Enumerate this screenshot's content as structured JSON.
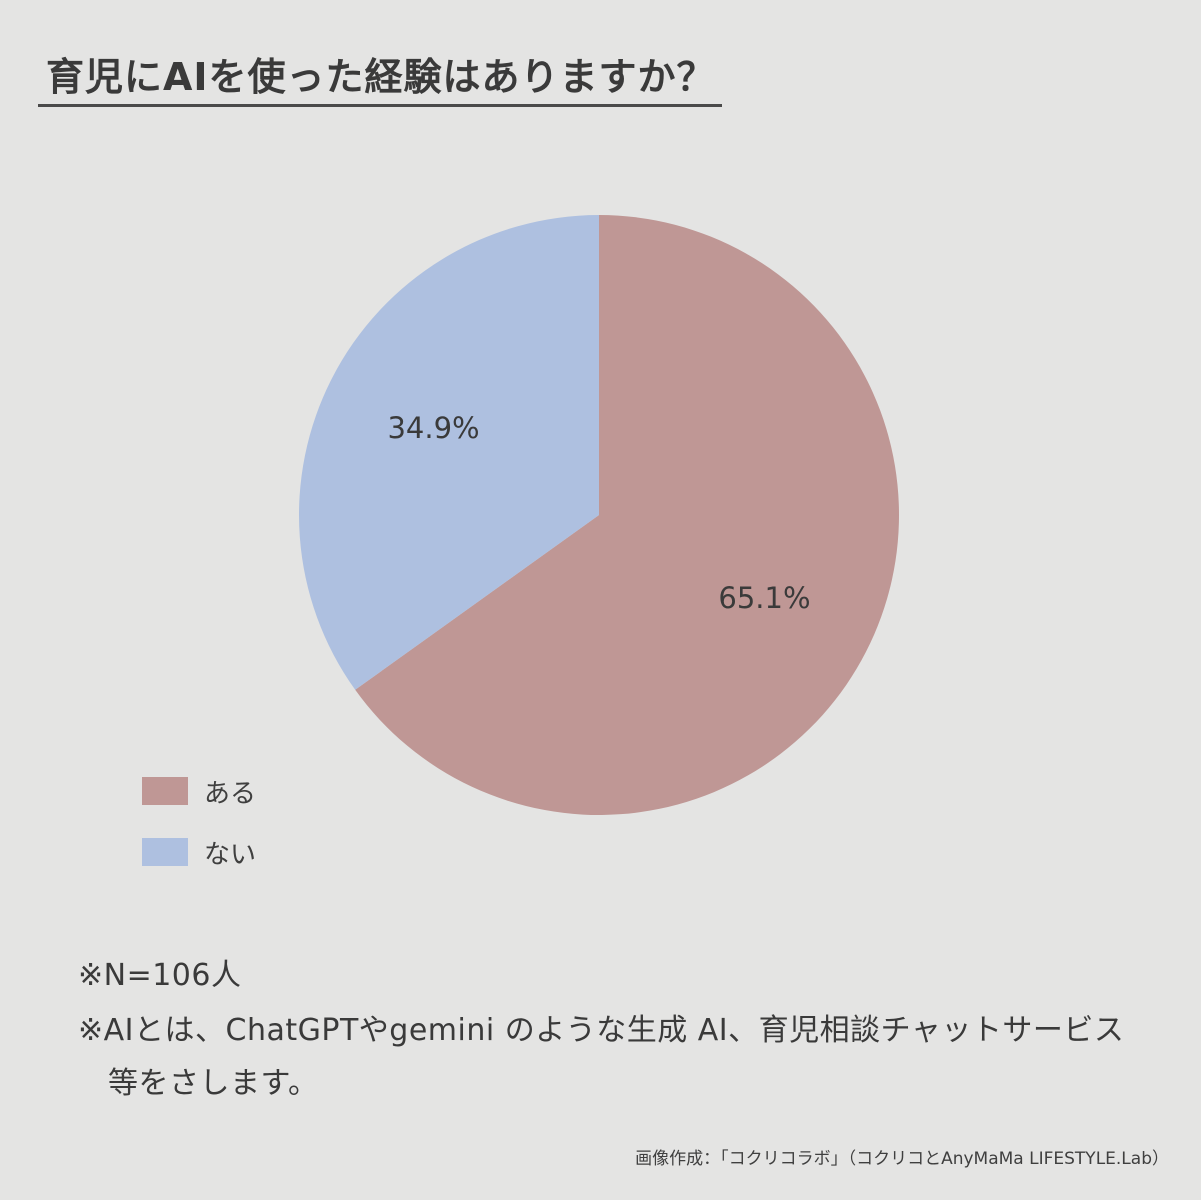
{
  "title": "育児にAIを使った経験はありますか？",
  "chart_data": {
    "type": "pie",
    "slices": [
      {
        "label": "ある",
        "value": 65.1,
        "value_label": "65.1%",
        "color": "#bf9795"
      },
      {
        "label": "ない",
        "value": 34.9,
        "value_label": "34.9%",
        "color": "#aec0e0"
      }
    ],
    "legend_position": "bottom-left"
  },
  "notes": {
    "sample_size": "※N=106人",
    "definition_line1": "※AIとは、ChatGPTやgemini のような生成 AI、育児相談チャットサービス",
    "definition_line2": "等をさします。"
  },
  "source": "画像作成：「コクリコラボ」（コクリコとAnyMaMa LIFESTYLE.Lab）",
  "colors": {
    "background": "#e4e4e3",
    "text": "#3f3f3f"
  }
}
